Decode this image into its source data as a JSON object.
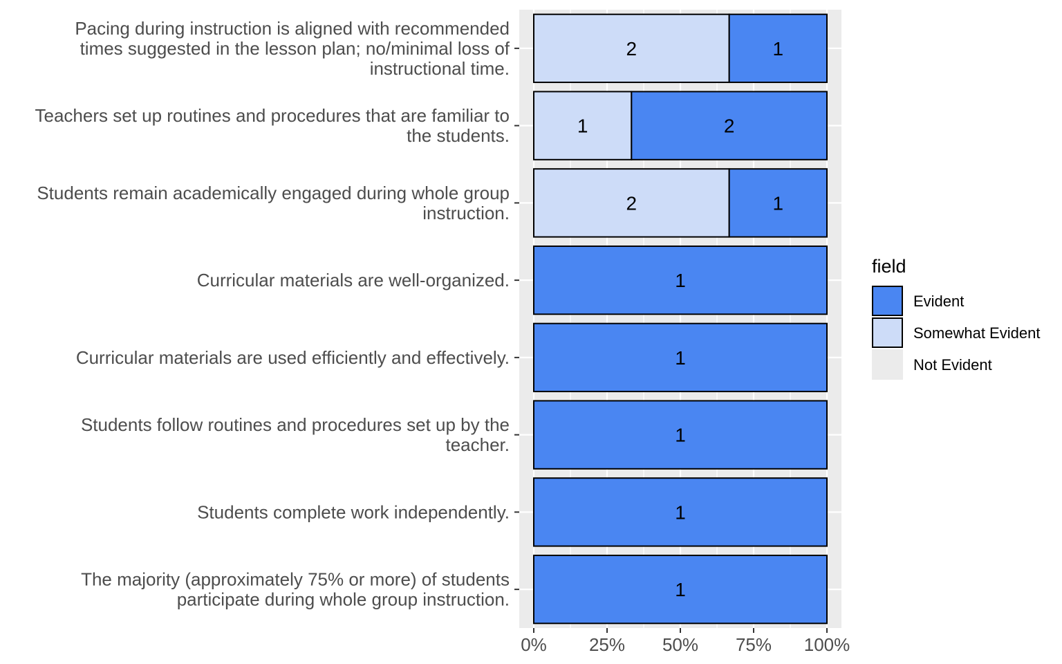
{
  "chart_data": {
    "type": "bar",
    "orientation": "horizontal",
    "stacked": "percent",
    "categories": [
      [
        "Pacing during instruction is aligned with recommended",
        "times suggested in the lesson plan; no/minimal loss of",
        "instructional time."
      ],
      [
        "Teachers set up routines and procedures that are familiar to",
        "the students."
      ],
      [
        "Students remain academically engaged during whole group",
        "instruction."
      ],
      [
        "Curricular materials are well-organized."
      ],
      [
        "Curricular materials are used efficiently and effectively."
      ],
      [
        "Students follow routines and procedures set up by the",
        "teacher."
      ],
      [
        "Students complete work independently."
      ],
      [
        "The majority (approximately 75% or more) of students",
        "participate during whole group instruction."
      ]
    ],
    "series": [
      {
        "name": "Somewhat Evident",
        "color": "#cddcf8",
        "values": [
          2,
          1,
          2,
          0,
          0,
          0,
          0,
          0
        ]
      },
      {
        "name": "Evident",
        "color": "#4a86f2",
        "values": [
          1,
          2,
          1,
          1,
          1,
          1,
          1,
          1
        ]
      },
      {
        "name": "Not Evident",
        "color": "#ebebeb",
        "values": [
          0,
          0,
          0,
          0,
          0,
          0,
          0,
          0
        ]
      }
    ],
    "xlim": [
      0,
      1
    ],
    "x_ticks": [
      "0%",
      "25%",
      "50%",
      "75%",
      "100%"
    ],
    "grid": true,
    "legend": {
      "title": "field",
      "position": "right",
      "entries": [
        {
          "label": "Evident",
          "color": "#4a86f2"
        },
        {
          "label": "Somewhat Evident",
          "color": "#cddcf8"
        },
        {
          "label": "Not Evident",
          "color": "#ebebeb"
        }
      ]
    },
    "xlabel": "",
    "ylabel": ""
  }
}
